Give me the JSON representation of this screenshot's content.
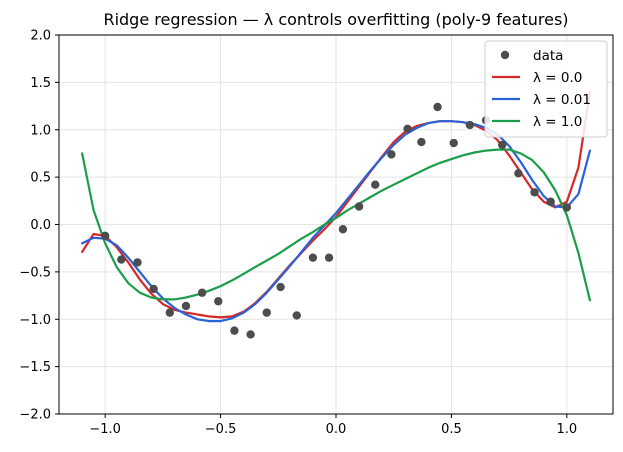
{
  "chart_data": {
    "type": "line",
    "title": "Ridge regression — λ controls overfitting (poly-9 features)",
    "xlabel": "",
    "ylabel": "",
    "xlim": [
      -1.2,
      1.2
    ],
    "ylim": [
      -2.0,
      2.0
    ],
    "x_ticks": [
      -1.0,
      -0.5,
      0.0,
      0.5,
      1.0
    ],
    "x_tick_labels": [
      "−1.0",
      "−0.5",
      "0.0",
      "0.5",
      "1.0"
    ],
    "y_ticks": [
      -2.0,
      -1.5,
      -1.0,
      -0.5,
      0.0,
      0.5,
      1.0,
      1.5,
      2.0
    ],
    "y_tick_labels": [
      "−2.0",
      "−1.5",
      "−1.0",
      "−0.5",
      "0.0",
      "0.5",
      "1.0",
      "1.5",
      "2.0"
    ],
    "grid": true,
    "legend_position": "top-right",
    "scatter": {
      "name": "data",
      "color": "#4d4d4d",
      "points": [
        [
          -1.0,
          -0.12
        ],
        [
          -0.93,
          -0.37
        ],
        [
          -0.86,
          -0.4
        ],
        [
          -0.79,
          -0.68
        ],
        [
          -0.72,
          -0.93
        ],
        [
          -0.65,
          -0.86
        ],
        [
          -0.58,
          -0.72
        ],
        [
          -0.51,
          -0.81
        ],
        [
          -0.44,
          -1.12
        ],
        [
          -0.37,
          -1.16
        ],
        [
          -0.3,
          -0.93
        ],
        [
          -0.24,
          -0.66
        ],
        [
          -0.17,
          -0.96
        ],
        [
          -0.1,
          -0.35
        ],
        [
          -0.03,
          -0.35
        ],
        [
          0.03,
          -0.05
        ],
        [
          0.1,
          0.19
        ],
        [
          0.17,
          0.42
        ],
        [
          0.24,
          0.74
        ],
        [
          0.31,
          1.01
        ],
        [
          0.37,
          0.87
        ],
        [
          0.44,
          1.24
        ],
        [
          0.51,
          0.86
        ],
        [
          0.58,
          1.05
        ],
        [
          0.65,
          1.1
        ],
        [
          0.72,
          0.84
        ],
        [
          0.79,
          0.54
        ],
        [
          0.86,
          0.34
        ],
        [
          0.93,
          0.24
        ],
        [
          1.0,
          0.18
        ]
      ]
    },
    "series": [
      {
        "name": "λ = 0.0",
        "color": "#d62828",
        "x": [
          -1.1,
          -1.05,
          -1.0,
          -0.95,
          -0.9,
          -0.85,
          -0.8,
          -0.75,
          -0.7,
          -0.65,
          -0.6,
          -0.55,
          -0.5,
          -0.45,
          -0.4,
          -0.35,
          -0.3,
          -0.25,
          -0.2,
          -0.15,
          -0.1,
          -0.05,
          0.0,
          0.05,
          0.1,
          0.15,
          0.2,
          0.25,
          0.3,
          0.35,
          0.4,
          0.45,
          0.5,
          0.55,
          0.6,
          0.65,
          0.7,
          0.75,
          0.8,
          0.85,
          0.9,
          0.95,
          1.0,
          1.05,
          1.1
        ],
        "y": [
          -0.29,
          -0.1,
          -0.12,
          -0.24,
          -0.4,
          -0.58,
          -0.73,
          -0.84,
          -0.9,
          -0.93,
          -0.95,
          -0.97,
          -0.98,
          -0.97,
          -0.92,
          -0.83,
          -0.71,
          -0.57,
          -0.43,
          -0.3,
          -0.17,
          -0.05,
          0.08,
          0.24,
          0.4,
          0.56,
          0.72,
          0.87,
          0.98,
          1.04,
          1.07,
          1.09,
          1.09,
          1.08,
          1.05,
          0.99,
          0.89,
          0.73,
          0.55,
          0.37,
          0.24,
          0.18,
          0.24,
          0.6,
          1.4
        ]
      },
      {
        "name": "λ = 0.01",
        "color": "#2962d6",
        "x": [
          -1.1,
          -1.05,
          -1.0,
          -0.95,
          -0.9,
          -0.85,
          -0.8,
          -0.75,
          -0.7,
          -0.65,
          -0.6,
          -0.55,
          -0.5,
          -0.45,
          -0.4,
          -0.35,
          -0.3,
          -0.25,
          -0.2,
          -0.15,
          -0.1,
          -0.05,
          0.0,
          0.05,
          0.1,
          0.15,
          0.2,
          0.25,
          0.3,
          0.35,
          0.4,
          0.45,
          0.5,
          0.55,
          0.6,
          0.65,
          0.7,
          0.75,
          0.8,
          0.85,
          0.9,
          0.95,
          1.0,
          1.05,
          1.1
        ],
        "y": [
          -0.2,
          -0.14,
          -0.15,
          -0.22,
          -0.35,
          -0.5,
          -0.65,
          -0.78,
          -0.88,
          -0.95,
          -1.0,
          -1.02,
          -1.02,
          -0.99,
          -0.93,
          -0.84,
          -0.72,
          -0.58,
          -0.44,
          -0.29,
          -0.14,
          -0.01,
          0.12,
          0.27,
          0.42,
          0.57,
          0.71,
          0.84,
          0.95,
          1.02,
          1.07,
          1.09,
          1.09,
          1.08,
          1.06,
          1.02,
          0.95,
          0.83,
          0.66,
          0.47,
          0.3,
          0.19,
          0.18,
          0.32,
          0.78
        ]
      },
      {
        "name": "λ = 1.0",
        "color": "#1a9e4a",
        "x": [
          -1.1,
          -1.05,
          -1.0,
          -0.95,
          -0.9,
          -0.85,
          -0.8,
          -0.75,
          -0.7,
          -0.65,
          -0.6,
          -0.55,
          -0.5,
          -0.45,
          -0.4,
          -0.35,
          -0.3,
          -0.25,
          -0.2,
          -0.15,
          -0.1,
          -0.05,
          0.0,
          0.05,
          0.1,
          0.15,
          0.2,
          0.25,
          0.3,
          0.35,
          0.4,
          0.45,
          0.5,
          0.55,
          0.6,
          0.65,
          0.7,
          0.75,
          0.8,
          0.85,
          0.9,
          0.95,
          1.0,
          1.05,
          1.1
        ],
        "y": [
          0.75,
          0.15,
          -0.2,
          -0.45,
          -0.62,
          -0.72,
          -0.77,
          -0.79,
          -0.79,
          -0.77,
          -0.74,
          -0.7,
          -0.65,
          -0.59,
          -0.52,
          -0.45,
          -0.38,
          -0.31,
          -0.23,
          -0.15,
          -0.08,
          0.0,
          0.07,
          0.15,
          0.22,
          0.29,
          0.36,
          0.42,
          0.48,
          0.54,
          0.6,
          0.65,
          0.69,
          0.73,
          0.76,
          0.78,
          0.79,
          0.79,
          0.75,
          0.68,
          0.55,
          0.36,
          0.1,
          -0.3,
          -0.8
        ]
      }
    ]
  }
}
